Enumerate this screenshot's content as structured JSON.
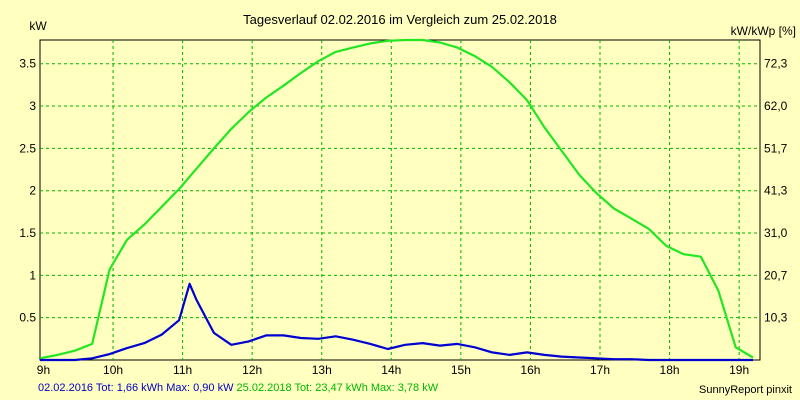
{
  "chart_data": {
    "type": "line",
    "title": "Tagesverlauf 02.02.2016 im Vergleich zum 25.02.2018",
    "ylabel_left": "kW",
    "ylabel_right": "kW/kWp [%]",
    "x_ticks": [
      "9h",
      "10h",
      "11h",
      "12h",
      "13h",
      "14h",
      "15h",
      "16h",
      "17h",
      "18h",
      "19h"
    ],
    "y_ticks_left": [
      "0.5",
      "1",
      "1.5",
      "2",
      "2.5",
      "3",
      "3.5"
    ],
    "y_ticks_right": [
      "10,3",
      "20,7",
      "31,0",
      "41,3",
      "51,7",
      "62,0",
      "72,3"
    ],
    "xlim": [
      8.95,
      19.3
    ],
    "ylim": [
      0,
      3.78
    ],
    "grid": true,
    "series": [
      {
        "name": "25.02.2018",
        "color": "#22e622",
        "x": [
          8.95,
          9.2,
          9.45,
          9.7,
          9.95,
          10.2,
          10.45,
          10.7,
          10.95,
          11.2,
          11.45,
          11.7,
          11.95,
          12.2,
          12.45,
          12.7,
          12.95,
          13.2,
          13.45,
          13.7,
          13.95,
          14.2,
          14.45,
          14.7,
          14.95,
          15.2,
          15.45,
          15.7,
          15.95,
          16.2,
          16.45,
          16.7,
          16.95,
          17.2,
          17.45,
          17.7,
          17.95,
          18.2,
          18.45,
          18.7,
          18.95,
          19.2
        ],
        "values": [
          0.02,
          0.06,
          0.11,
          0.19,
          1.07,
          1.42,
          1.6,
          1.81,
          2.02,
          2.26,
          2.5,
          2.73,
          2.93,
          3.1,
          3.24,
          3.39,
          3.53,
          3.64,
          3.69,
          3.74,
          3.77,
          3.78,
          3.78,
          3.75,
          3.69,
          3.59,
          3.46,
          3.28,
          3.07,
          2.75,
          2.47,
          2.19,
          1.97,
          1.79,
          1.67,
          1.55,
          1.35,
          1.25,
          1.22,
          0.82,
          0.15,
          0.03
        ]
      },
      {
        "name": "02.02.2016",
        "color": "#0000d0",
        "x": [
          8.95,
          9.2,
          9.45,
          9.7,
          9.95,
          10.2,
          10.45,
          10.7,
          10.95,
          11.1,
          11.2,
          11.45,
          11.7,
          11.95,
          12.2,
          12.45,
          12.7,
          12.95,
          13.2,
          13.45,
          13.7,
          13.95,
          14.2,
          14.45,
          14.7,
          14.95,
          15.2,
          15.45,
          15.7,
          15.95,
          16.2,
          16.45,
          16.7,
          16.95,
          17.2,
          17.45,
          17.7,
          17.95,
          18.2,
          18.45,
          18.7,
          18.95,
          19.2
        ],
        "values": [
          0.0,
          0.0,
          0.0,
          0.02,
          0.07,
          0.14,
          0.2,
          0.3,
          0.47,
          0.9,
          0.71,
          0.32,
          0.18,
          0.22,
          0.29,
          0.29,
          0.26,
          0.25,
          0.28,
          0.24,
          0.19,
          0.13,
          0.18,
          0.2,
          0.17,
          0.19,
          0.15,
          0.09,
          0.06,
          0.09,
          0.06,
          0.04,
          0.03,
          0.02,
          0.01,
          0.01,
          0.0,
          0.0,
          0.0,
          0.0,
          0.0,
          0.0,
          0.0
        ]
      }
    ]
  },
  "footer": {
    "series1_label": "02.02.2016 Tot: 1,66 kWh Max: 0,90 kW",
    "series2_label": "25.02.2018 Tot: 23,47 kWh Max: 3,78 kW",
    "credit": "SunnyReport pinxit"
  }
}
